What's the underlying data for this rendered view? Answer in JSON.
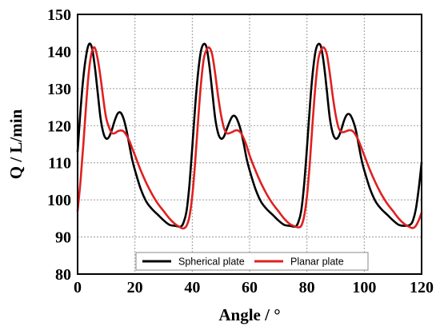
{
  "chart_data": {
    "type": "line",
    "xlabel": "Angle  /  °",
    "ylabel": "Q  /  L/min",
    "xlim": [
      0,
      120
    ],
    "ylim": [
      80,
      150
    ],
    "x_ticks": [
      0,
      20,
      40,
      60,
      80,
      100,
      120
    ],
    "y_ticks": [
      80,
      90,
      100,
      110,
      120,
      130,
      140,
      150
    ],
    "grid": true,
    "legend_position": "bottom-center",
    "series": [
      {
        "name": "Spherical plate",
        "color": "#000000",
        "x": [
          0,
          1,
          2,
          3,
          4,
          5,
          6,
          7,
          8,
          9,
          10,
          11,
          12,
          13,
          14,
          15,
          16,
          17,
          18,
          19,
          20,
          22,
          24,
          26,
          28,
          30,
          32,
          34,
          36,
          37,
          38,
          39,
          40,
          41,
          42,
          43,
          44,
          45,
          46,
          47,
          48,
          49,
          50,
          51,
          52,
          53,
          54,
          55,
          56,
          57,
          58,
          59,
          60,
          62,
          64,
          66,
          68,
          70,
          72,
          74,
          76,
          77,
          78,
          79,
          80,
          81,
          82,
          83,
          84,
          85,
          86,
          87,
          88,
          89,
          90,
          91,
          92,
          93,
          94,
          95,
          96,
          97,
          98,
          99,
          100,
          102,
          104,
          106,
          108,
          110,
          112,
          114,
          116,
          117,
          118,
          119,
          120
        ],
        "y": [
          113,
          124,
          133,
          139,
          142,
          141,
          136,
          129,
          122,
          118,
          116.5,
          117,
          119,
          121.5,
          123.3,
          123.5,
          122,
          119,
          115,
          111,
          108,
          103,
          99.5,
          97.5,
          96,
          94.5,
          93.3,
          93,
          92.8,
          94,
          97,
          104,
          114,
          125,
          134,
          140,
          142,
          141,
          136,
          129,
          122,
          118,
          116.5,
          117,
          119,
          121,
          122.5,
          122.5,
          121,
          118.5,
          115,
          111,
          108,
          103,
          99.5,
          97.5,
          96,
          94.5,
          93.3,
          93,
          92.8,
          94,
          97,
          104,
          114,
          125,
          134,
          140,
          142,
          141,
          136,
          129,
          122,
          118,
          116.5,
          117,
          119,
          121.5,
          123,
          123,
          121.5,
          119,
          115,
          111,
          108,
          103,
          99.5,
          97.5,
          96,
          94.5,
          93.3,
          93,
          93.3,
          94.5,
          97.5,
          103,
          110
        ]
      },
      {
        "name": "Planar plate",
        "color": "#e02020",
        "x": [
          0,
          1,
          2,
          3,
          4,
          5,
          6,
          7,
          8,
          9,
          10,
          11,
          12,
          13,
          14,
          15,
          16,
          17,
          18,
          19,
          20,
          22,
          24,
          26,
          28,
          30,
          32,
          34,
          36,
          37,
          38,
          39,
          40,
          41,
          42,
          43,
          44,
          45,
          46,
          47,
          48,
          49,
          50,
          51,
          52,
          53,
          54,
          55,
          56,
          57,
          58,
          59,
          60,
          62,
          64,
          66,
          68,
          70,
          72,
          74,
          76,
          77,
          78,
          79,
          80,
          81,
          82,
          83,
          84,
          85,
          86,
          87,
          88,
          89,
          90,
          91,
          92,
          93,
          94,
          95,
          96,
          97,
          98,
          99,
          100,
          102,
          104,
          106,
          108,
          110,
          112,
          114,
          116,
          117,
          118,
          119,
          120
        ],
        "y": [
          97,
          105,
          115,
          126,
          135,
          140,
          141,
          138,
          133,
          127,
          122,
          119.5,
          118,
          118,
          118.5,
          118.7,
          118.5,
          117.5,
          116,
          114,
          112,
          108,
          104.5,
          101.5,
          99,
          97,
          95,
          93.5,
          92.5,
          92.3,
          93,
          95.5,
          101,
          110,
          121,
          131,
          138,
          140.5,
          141,
          139,
          134,
          128,
          123,
          119.5,
          118,
          118,
          118.3,
          118.7,
          118.7,
          118,
          116.5,
          114.5,
          112,
          108,
          104.5,
          101.5,
          99,
          97,
          95,
          93.5,
          92.8,
          92.6,
          93,
          95.5,
          101,
          110,
          121,
          131,
          138,
          140.5,
          141,
          139,
          134,
          128,
          123,
          119.5,
          118.3,
          118.3,
          118.6,
          118.8,
          118.5,
          117.5,
          116,
          114,
          112,
          108,
          104.5,
          101.5,
          99,
          97,
          95,
          93.5,
          92.6,
          92.4,
          93,
          94.5,
          96.5
        ]
      }
    ]
  }
}
